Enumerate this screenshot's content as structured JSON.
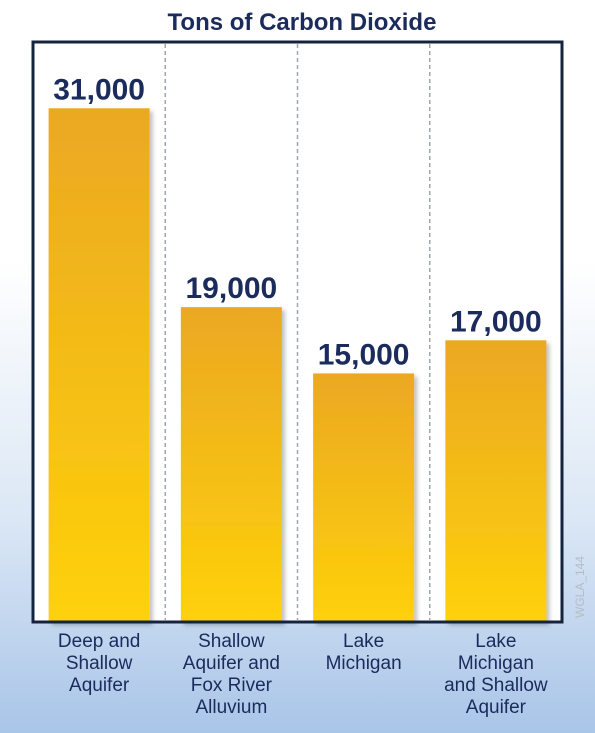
{
  "chart_data": {
    "type": "bar",
    "title": "Tons of Carbon Dioxide",
    "categories": [
      [
        "Deep and",
        "Shallow",
        "Aquifer"
      ],
      [
        "Shallow",
        "Aquifer and",
        "Fox River",
        "Alluvium"
      ],
      [
        "Lake",
        "Michigan"
      ],
      [
        "Lake",
        "Michigan",
        "and Shallow",
        "Aquifer"
      ]
    ],
    "values": [
      31000,
      19000,
      15000,
      17000
    ],
    "value_labels": [
      "31,000",
      "19,000",
      "15,000",
      "17,000"
    ],
    "xlabel": "",
    "ylabel": "",
    "ylim": [
      0,
      35000
    ],
    "grid": false,
    "separators": "dashed-vertical",
    "colors": {
      "bar_top": "#eba823",
      "bar_bottom": "#fed10a",
      "frame": "#16233f",
      "text": "#1a2b5c"
    }
  },
  "watermark": "WGLA_144"
}
